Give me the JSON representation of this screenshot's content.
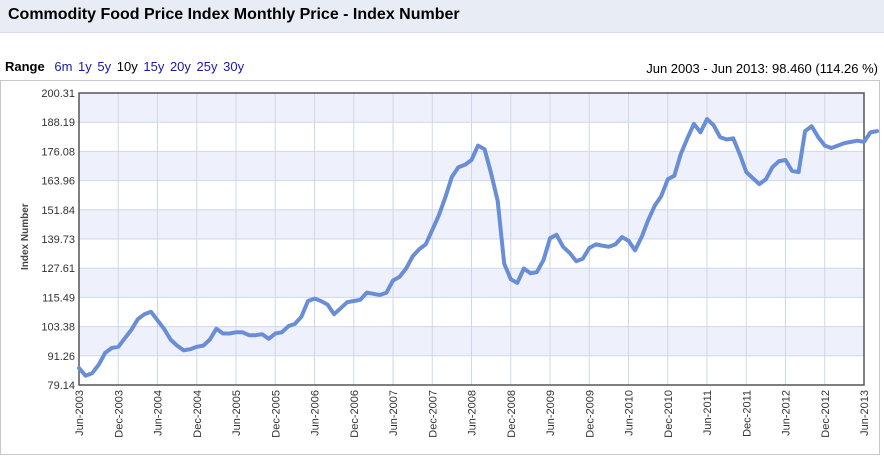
{
  "page": {
    "title": "Commodity Food Price Index Monthly Price - Index Number"
  },
  "range": {
    "label": "Range",
    "options": [
      "6m",
      "1y",
      "5y",
      "10y",
      "15y",
      "20y",
      "25y",
      "30y"
    ],
    "selected": "10y"
  },
  "summary": "Jun 2003 - Jun 2013: 98.460 (114.26 %)",
  "colors": {
    "line": "#6a8ed6",
    "grid": "#cfd8ea",
    "band": "#eef1fb",
    "range_link": "#1a1aa6"
  },
  "chart_data": {
    "type": "line",
    "title": "Commodity Food Price Index Monthly Price - Index Number",
    "ylabel": "Index Number",
    "xlabel": "",
    "ylim": [
      79.14,
      200.31
    ],
    "yticks": [
      "200.31",
      "188.19",
      "176.08",
      "163.96",
      "151.84",
      "139.73",
      "127.61",
      "115.49",
      "103.38",
      "91.26",
      "79.14"
    ],
    "xticks": [
      "Jun-2003",
      "Dec-2003",
      "Jun-2004",
      "Dec-2004",
      "Jun-2005",
      "Dec-2005",
      "Jun-2006",
      "Dec-2006",
      "Jun-2007",
      "Dec-2007",
      "Jun-2008",
      "Dec-2008",
      "Jun-2009",
      "Dec-2009",
      "Jun-2010",
      "Dec-2010",
      "Jun-2011",
      "Dec-2011",
      "Jun-2012",
      "Dec-2012",
      "Jun-2013"
    ],
    "grid": true,
    "legend": "none",
    "series": [
      {
        "name": "Commodity Food Price Index",
        "x_start": "Jun-2003",
        "frequency": "monthly",
        "values": [
          86.2,
          83.0,
          84.0,
          87.5,
          92.5,
          94.5,
          95.0,
          98.5,
          102.0,
          106.5,
          108.5,
          109.5,
          106.0,
          102.5,
          98.0,
          95.5,
          93.5,
          94.0,
          95.0,
          95.5,
          98.0,
          102.5,
          100.5,
          100.5,
          101.0,
          101.0,
          99.8,
          99.8,
          100.2,
          98.3,
          100.5,
          101.0,
          103.5,
          104.5,
          107.5,
          114.0,
          115.0,
          114.0,
          112.5,
          108.5,
          111.0,
          113.5,
          114.0,
          114.5,
          117.5,
          117.0,
          116.5,
          117.5,
          122.5,
          124.0,
          127.5,
          132.5,
          135.5,
          137.5,
          143.5,
          149.5,
          157.0,
          165.5,
          169.5,
          170.5,
          172.5,
          178.5,
          177.0,
          167.0,
          155.5,
          129.5,
          123.0,
          121.5,
          127.5,
          125.5,
          126.0,
          131.0,
          140.0,
          141.5,
          136.5,
          134.0,
          130.5,
          131.5,
          136.0,
          137.5,
          137.0,
          136.5,
          137.5,
          140.5,
          139.0,
          135.0,
          140.5,
          147.5,
          153.5,
          157.5,
          164.5,
          166.0,
          175.0,
          181.5,
          187.5,
          184.0,
          189.5,
          187.0,
          182.0,
          181.0,
          181.5,
          175.0,
          167.5,
          165.0,
          162.5,
          164.5,
          169.5,
          172.0,
          172.5,
          168.0,
          167.5,
          184.5,
          186.5,
          182.0,
          178.5,
          177.5,
          178.5,
          179.5,
          180.0,
          180.5,
          180.0,
          184.0,
          184.5
        ]
      }
    ]
  }
}
